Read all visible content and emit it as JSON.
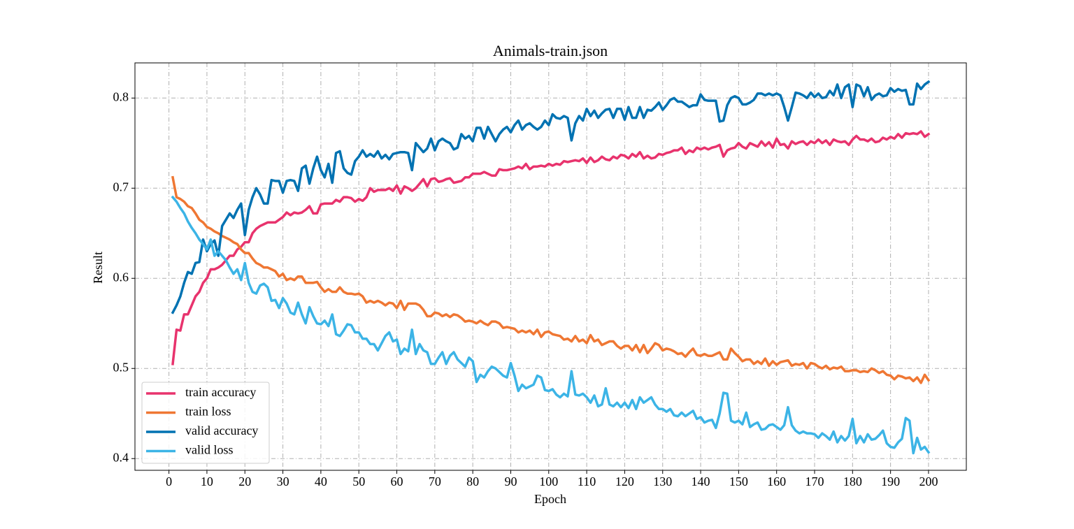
{
  "chart_data": {
    "type": "line",
    "title": "Animals-train.json",
    "x_label": "Epoch",
    "y_label": "Result",
    "xlim": [
      -8.95,
      209.95
    ],
    "ylim": [
      0.387,
      0.839
    ],
    "xticks": [
      0,
      10,
      20,
      30,
      40,
      50,
      60,
      70,
      80,
      90,
      100,
      110,
      120,
      130,
      140,
      150,
      160,
      170,
      180,
      190,
      200
    ],
    "yticks": [
      0.4,
      0.5,
      0.6,
      0.7,
      0.8
    ],
    "grid": true,
    "legend": "lower left",
    "x": [
      1,
      2,
      3,
      4,
      5,
      6,
      7,
      8,
      9,
      10,
      11,
      12,
      13,
      14,
      15,
      16,
      17,
      18,
      19,
      20,
      21,
      22,
      23,
      24,
      25,
      26,
      27,
      28,
      29,
      30,
      31,
      32,
      33,
      34,
      35,
      36,
      37,
      38,
      39,
      40,
      41,
      42,
      43,
      44,
      45,
      46,
      47,
      48,
      49,
      50,
      51,
      52,
      53,
      54,
      55,
      56,
      57,
      58,
      59,
      60,
      61,
      62,
      63,
      64,
      65,
      66,
      67,
      68,
      69,
      70,
      71,
      72,
      73,
      74,
      75,
      76,
      77,
      78,
      79,
      80,
      81,
      82,
      83,
      84,
      85,
      86,
      87,
      88,
      89,
      90,
      91,
      92,
      93,
      94,
      95,
      96,
      97,
      98,
      99,
      100,
      101,
      102,
      103,
      104,
      105,
      106,
      107,
      108,
      109,
      110,
      111,
      112,
      113,
      114,
      115,
      116,
      117,
      118,
      119,
      120,
      121,
      122,
      123,
      124,
      125,
      126,
      127,
      128,
      129,
      130,
      131,
      132,
      133,
      134,
      135,
      136,
      137,
      138,
      139,
      140,
      141,
      142,
      143,
      144,
      145,
      146,
      147,
      148,
      149,
      150,
      151,
      152,
      153,
      154,
      155,
      156,
      157,
      158,
      159,
      160,
      161,
      162,
      163,
      164,
      165,
      166,
      167,
      168,
      169,
      170,
      171,
      172,
      173,
      174,
      175,
      176,
      177,
      178,
      179,
      180,
      181,
      182,
      183,
      184,
      185,
      186,
      187,
      188,
      189,
      190,
      191,
      192,
      193,
      194,
      195,
      196,
      197,
      198,
      199,
      200
    ],
    "series": [
      {
        "name": "train accuracy",
        "color": "#e8336d",
        "values": [
          0.505,
          0.543,
          0.542,
          0.56,
          0.56,
          0.57,
          0.58,
          0.585,
          0.595,
          0.6,
          0.61,
          0.61,
          0.612,
          0.615,
          0.62,
          0.625,
          0.625,
          0.632,
          0.635,
          0.64,
          0.64,
          0.65,
          0.655,
          0.658,
          0.66,
          0.662,
          0.662,
          0.662,
          0.665,
          0.668,
          0.673,
          0.67,
          0.673,
          0.672,
          0.673,
          0.676,
          0.68,
          0.672,
          0.672,
          0.682,
          0.683,
          0.683,
          0.683,
          0.687,
          0.685,
          0.69,
          0.69,
          0.689,
          0.685,
          0.688,
          0.686,
          0.69,
          0.7,
          0.696,
          0.698,
          0.698,
          0.698,
          0.7,
          0.697,
          0.703,
          0.694,
          0.702,
          0.7,
          0.697,
          0.7,
          0.705,
          0.71,
          0.702,
          0.71,
          0.711,
          0.707,
          0.708,
          0.71,
          0.711,
          0.706,
          0.707,
          0.708,
          0.712,
          0.712,
          0.716,
          0.716,
          0.716,
          0.718,
          0.716,
          0.714,
          0.714,
          0.721,
          0.72,
          0.72,
          0.721,
          0.722,
          0.724,
          0.722,
          0.727,
          0.721,
          0.724,
          0.724,
          0.725,
          0.724,
          0.727,
          0.725,
          0.727,
          0.726,
          0.73,
          0.729,
          0.73,
          0.731,
          0.73,
          0.733,
          0.728,
          0.734,
          0.729,
          0.731,
          0.735,
          0.732,
          0.731,
          0.735,
          0.733,
          0.737,
          0.736,
          0.733,
          0.738,
          0.735,
          0.74,
          0.733,
          0.736,
          0.733,
          0.734,
          0.738,
          0.737,
          0.739,
          0.74,
          0.742,
          0.742,
          0.745,
          0.738,
          0.742,
          0.74,
          0.745,
          0.743,
          0.745,
          0.743,
          0.745,
          0.746,
          0.748,
          0.735,
          0.742,
          0.744,
          0.745,
          0.75,
          0.746,
          0.744,
          0.75,
          0.748,
          0.746,
          0.752,
          0.747,
          0.751,
          0.745,
          0.755,
          0.748,
          0.749,
          0.744,
          0.752,
          0.749,
          0.751,
          0.752,
          0.748,
          0.752,
          0.75,
          0.754,
          0.75,
          0.753,
          0.748,
          0.754,
          0.752,
          0.751,
          0.752,
          0.748,
          0.754,
          0.758,
          0.754,
          0.754,
          0.752,
          0.755,
          0.751,
          0.752,
          0.756,
          0.754,
          0.757,
          0.755,
          0.76,
          0.756,
          0.761,
          0.76,
          0.761,
          0.76,
          0.763,
          0.757,
          0.76
        ]
      },
      {
        "name": "train loss",
        "color": "#ef7733",
        "values": [
          0.712,
          0.69,
          0.688,
          0.685,
          0.68,
          0.678,
          0.672,
          0.665,
          0.662,
          0.657,
          0.655,
          0.652,
          0.65,
          0.647,
          0.645,
          0.643,
          0.64,
          0.638,
          0.632,
          0.628,
          0.628,
          0.622,
          0.617,
          0.615,
          0.612,
          0.612,
          0.61,
          0.608,
          0.602,
          0.605,
          0.598,
          0.6,
          0.598,
          0.602,
          0.602,
          0.595,
          0.595,
          0.595,
          0.596,
          0.59,
          0.585,
          0.588,
          0.585,
          0.585,
          0.59,
          0.585,
          0.583,
          0.583,
          0.582,
          0.583,
          0.58,
          0.573,
          0.575,
          0.573,
          0.575,
          0.573,
          0.57,
          0.573,
          0.572,
          0.567,
          0.575,
          0.565,
          0.572,
          0.572,
          0.572,
          0.57,
          0.565,
          0.558,
          0.558,
          0.562,
          0.561,
          0.558,
          0.56,
          0.557,
          0.56,
          0.559,
          0.556,
          0.552,
          0.553,
          0.552,
          0.55,
          0.553,
          0.55,
          0.548,
          0.552,
          0.552,
          0.55,
          0.545,
          0.546,
          0.545,
          0.544,
          0.54,
          0.542,
          0.54,
          0.542,
          0.538,
          0.543,
          0.535,
          0.54,
          0.541,
          0.538,
          0.537,
          0.536,
          0.532,
          0.533,
          0.53,
          0.536,
          0.53,
          0.532,
          0.528,
          0.537,
          0.53,
          0.532,
          0.526,
          0.528,
          0.53,
          0.53,
          0.525,
          0.522,
          0.525,
          0.525,
          0.52,
          0.526,
          0.518,
          0.526,
          0.517,
          0.522,
          0.528,
          0.526,
          0.52,
          0.522,
          0.521,
          0.519,
          0.516,
          0.517,
          0.513,
          0.518,
          0.522,
          0.515,
          0.514,
          0.516,
          0.514,
          0.514,
          0.516,
          0.518,
          0.51,
          0.51,
          0.522,
          0.517,
          0.513,
          0.508,
          0.51,
          0.51,
          0.505,
          0.508,
          0.505,
          0.511,
          0.503,
          0.508,
          0.504,
          0.507,
          0.508,
          0.509,
          0.503,
          0.505,
          0.504,
          0.506,
          0.5,
          0.506,
          0.505,
          0.502,
          0.5,
          0.503,
          0.499,
          0.501,
          0.5,
          0.502,
          0.497,
          0.497,
          0.498,
          0.498,
          0.496,
          0.497,
          0.496,
          0.5,
          0.498,
          0.495,
          0.497,
          0.493,
          0.492,
          0.488,
          0.492,
          0.491,
          0.489,
          0.49,
          0.486,
          0.49,
          0.484,
          0.493,
          0.487
        ]
      },
      {
        "name": "valid accuracy",
        "color": "#0072b2",
        "values": [
          0.562,
          0.57,
          0.58,
          0.595,
          0.607,
          0.605,
          0.617,
          0.618,
          0.643,
          0.63,
          0.638,
          0.642,
          0.625,
          0.658,
          0.665,
          0.672,
          0.667,
          0.676,
          0.683,
          0.648,
          0.676,
          0.69,
          0.7,
          0.693,
          0.683,
          0.683,
          0.709,
          0.708,
          0.708,
          0.695,
          0.708,
          0.709,
          0.708,
          0.697,
          0.722,
          0.725,
          0.705,
          0.722,
          0.735,
          0.72,
          0.712,
          0.727,
          0.706,
          0.739,
          0.741,
          0.722,
          0.717,
          0.715,
          0.73,
          0.735,
          0.742,
          0.735,
          0.738,
          0.735,
          0.741,
          0.733,
          0.737,
          0.732,
          0.738,
          0.739,
          0.74,
          0.74,
          0.739,
          0.72,
          0.75,
          0.745,
          0.74,
          0.744,
          0.755,
          0.742,
          0.752,
          0.755,
          0.752,
          0.75,
          0.743,
          0.745,
          0.76,
          0.755,
          0.758,
          0.752,
          0.767,
          0.767,
          0.755,
          0.768,
          0.76,
          0.752,
          0.76,
          0.765,
          0.768,
          0.762,
          0.77,
          0.775,
          0.765,
          0.77,
          0.772,
          0.768,
          0.765,
          0.768,
          0.775,
          0.77,
          0.782,
          0.778,
          0.777,
          0.78,
          0.778,
          0.753,
          0.772,
          0.78,
          0.775,
          0.788,
          0.78,
          0.786,
          0.778,
          0.783,
          0.787,
          0.788,
          0.778,
          0.788,
          0.788,
          0.776,
          0.79,
          0.778,
          0.778,
          0.79,
          0.778,
          0.787,
          0.786,
          0.79,
          0.795,
          0.787,
          0.792,
          0.798,
          0.8,
          0.796,
          0.796,
          0.793,
          0.79,
          0.792,
          0.792,
          0.804,
          0.798,
          0.797,
          0.797,
          0.797,
          0.774,
          0.775,
          0.792,
          0.8,
          0.802,
          0.8,
          0.793,
          0.793,
          0.795,
          0.798,
          0.805,
          0.805,
          0.803,
          0.805,
          0.803,
          0.805,
          0.803,
          0.79,
          0.775,
          0.79,
          0.806,
          0.805,
          0.803,
          0.8,
          0.806,
          0.801,
          0.805,
          0.8,
          0.801,
          0.808,
          0.803,
          0.815,
          0.8,
          0.812,
          0.815,
          0.79,
          0.815,
          0.813,
          0.802,
          0.812,
          0.798,
          0.803,
          0.805,
          0.802,
          0.803,
          0.811,
          0.807,
          0.81,
          0.808,
          0.809,
          0.793,
          0.793,
          0.816,
          0.81,
          0.815,
          0.818
        ]
      },
      {
        "name": "valid loss",
        "color": "#3cb4e6",
        "values": [
          0.69,
          0.685,
          0.678,
          0.672,
          0.663,
          0.656,
          0.65,
          0.643,
          0.638,
          0.632,
          0.643,
          0.625,
          0.63,
          0.625,
          0.62,
          0.612,
          0.605,
          0.61,
          0.598,
          0.617,
          0.595,
          0.585,
          0.583,
          0.592,
          0.594,
          0.59,
          0.575,
          0.576,
          0.567,
          0.578,
          0.572,
          0.562,
          0.56,
          0.573,
          0.56,
          0.55,
          0.568,
          0.558,
          0.55,
          0.549,
          0.553,
          0.547,
          0.56,
          0.538,
          0.536,
          0.542,
          0.549,
          0.548,
          0.54,
          0.54,
          0.533,
          0.533,
          0.527,
          0.527,
          0.52,
          0.528,
          0.536,
          0.54,
          0.53,
          0.532,
          0.516,
          0.522,
          0.519,
          0.543,
          0.516,
          0.527,
          0.52,
          0.518,
          0.505,
          0.505,
          0.512,
          0.518,
          0.505,
          0.514,
          0.518,
          0.51,
          0.506,
          0.502,
          0.512,
          0.508,
          0.485,
          0.493,
          0.49,
          0.497,
          0.502,
          0.5,
          0.496,
          0.492,
          0.49,
          0.506,
          0.492,
          0.475,
          0.482,
          0.478,
          0.48,
          0.482,
          0.492,
          0.49,
          0.476,
          0.475,
          0.477,
          0.471,
          0.468,
          0.472,
          0.469,
          0.497,
          0.471,
          0.47,
          0.472,
          0.468,
          0.462,
          0.47,
          0.458,
          0.46,
          0.478,
          0.46,
          0.458,
          0.462,
          0.457,
          0.462,
          0.456,
          0.465,
          0.455,
          0.468,
          0.462,
          0.465,
          0.468,
          0.46,
          0.455,
          0.455,
          0.452,
          0.455,
          0.448,
          0.447,
          0.451,
          0.447,
          0.45,
          0.453,
          0.444,
          0.446,
          0.44,
          0.442,
          0.443,
          0.434,
          0.45,
          0.473,
          0.472,
          0.442,
          0.44,
          0.442,
          0.438,
          0.451,
          0.435,
          0.438,
          0.44,
          0.432,
          0.433,
          0.437,
          0.438,
          0.435,
          0.432,
          0.437,
          0.457,
          0.437,
          0.431,
          0.428,
          0.43,
          0.428,
          0.428,
          0.427,
          0.423,
          0.428,
          0.425,
          0.421,
          0.43,
          0.418,
          0.425,
          0.42,
          0.425,
          0.444,
          0.417,
          0.425,
          0.418,
          0.427,
          0.421,
          0.422,
          0.426,
          0.431,
          0.417,
          0.413,
          0.412,
          0.418,
          0.422,
          0.445,
          0.442,
          0.406,
          0.423,
          0.41,
          0.413,
          0.407
        ]
      }
    ]
  }
}
